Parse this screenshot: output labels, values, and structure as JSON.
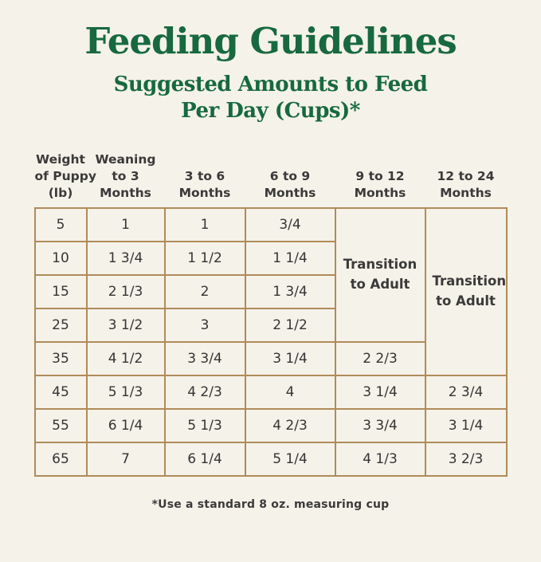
{
  "page": {
    "title": "Feeding Guidelines",
    "subtitle": "Suggested Amounts to Feed\nPer Day (Cups)*",
    "footnote": "*Use a standard 8 oz. measuring cup"
  },
  "colors": {
    "background": "#f5f2e9",
    "title_green": "#17693f",
    "table_border": "#b08b5a",
    "text_dark": "#343434"
  },
  "chart_data": {
    "type": "table",
    "title": "Feeding Guidelines",
    "subtitle": "Suggested Amounts to Feed Per Day (Cups)*",
    "footnote": "*Use a standard 8 oz. measuring cup",
    "columns": [
      "Weight of Puppy (lb)",
      "Weaning to 3 Months",
      "3 to 6 Months",
      "6 to 9 Months",
      "9 to 12 Months",
      "12 to 24 Months"
    ],
    "columns_display": [
      "Weight\nof Puppy\n(lb)",
      "Weaning\nto 3\nMonths",
      "3 to 6\nMonths",
      "6 to 9\nMonths",
      "9 to 12\nMonths",
      "12 to 24\nMonths"
    ],
    "merge_label": "Transition to Adult",
    "weights_lb": [
      "5",
      "10",
      "15",
      "25",
      "35",
      "45",
      "55",
      "65"
    ],
    "series": [
      {
        "name": "Weaning to 3 Months",
        "values": [
          "1",
          "1 3/4",
          "2 1/3",
          "3 1/2",
          "4 1/2",
          "5 1/3",
          "6 1/4",
          "7"
        ]
      },
      {
        "name": "3 to 6 Months",
        "values": [
          "1",
          "1 1/2",
          "2",
          "3",
          "3 3/4",
          "4 2/3",
          "5 1/3",
          "6 1/4"
        ]
      },
      {
        "name": "6 to 9 Months",
        "values": [
          "3/4",
          "1 1/4",
          "1 3/4",
          "2 1/2",
          "3 1/4",
          "4",
          "4 2/3",
          "5 1/4"
        ]
      },
      {
        "name": "9 to 12 Months",
        "values": [
          "Transition to Adult",
          "Transition to Adult",
          "Transition to Adult",
          "Transition to Adult",
          "2 2/3",
          "3 1/4",
          "3 3/4",
          "4 1/3"
        ]
      },
      {
        "name": "12 to 24 Months",
        "values": [
          "Transition to Adult",
          "Transition to Adult",
          "Transition to Adult",
          "Transition to Adult",
          "Transition to Adult",
          "2 3/4",
          "3 1/4",
          "3 2/3"
        ]
      }
    ]
  }
}
